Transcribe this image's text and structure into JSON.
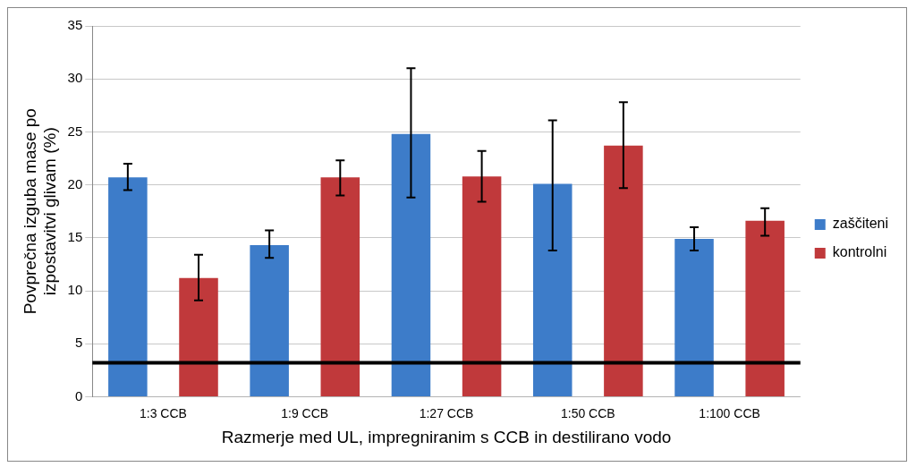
{
  "chart_data": {
    "type": "bar",
    "categories": [
      "1:3 CCB",
      "1:9 CCB",
      "1:27 CCB",
      "1:50 CCB",
      "1:100 CCB"
    ],
    "series": [
      {
        "name": "zaščiteni",
        "color": "#3d7cc9",
        "values": [
          20.7,
          14.3,
          24.8,
          20.1,
          14.9
        ],
        "errors": [
          [
            19.5,
            22.0
          ],
          [
            13.1,
            15.7
          ],
          [
            18.8,
            31.0
          ],
          [
            13.8,
            26.1
          ],
          [
            13.8,
            16.0
          ]
        ]
      },
      {
        "name": "kontrolni",
        "color": "#c0393b",
        "values": [
          11.2,
          20.7,
          20.8,
          23.7,
          16.6
        ],
        "errors": [
          [
            9.1,
            13.4
          ],
          [
            19.0,
            22.3
          ],
          [
            18.4,
            23.2
          ],
          [
            19.7,
            27.8
          ],
          [
            15.2,
            17.8
          ]
        ]
      }
    ],
    "xlabel": "Razmerje med UL, impregniranim s CCB in destilirano vodo",
    "ylabel": "Povprečna izguba mase po izpostavitvi glivam (%)",
    "ylim": [
      0,
      35
    ],
    "yticks": [
      0,
      5,
      10,
      15,
      20,
      25,
      30,
      35
    ],
    "grid": "y",
    "legend": "right",
    "ref_lines": [
      {
        "axis": "y",
        "value": 3.2,
        "color": "#000000"
      }
    ]
  }
}
